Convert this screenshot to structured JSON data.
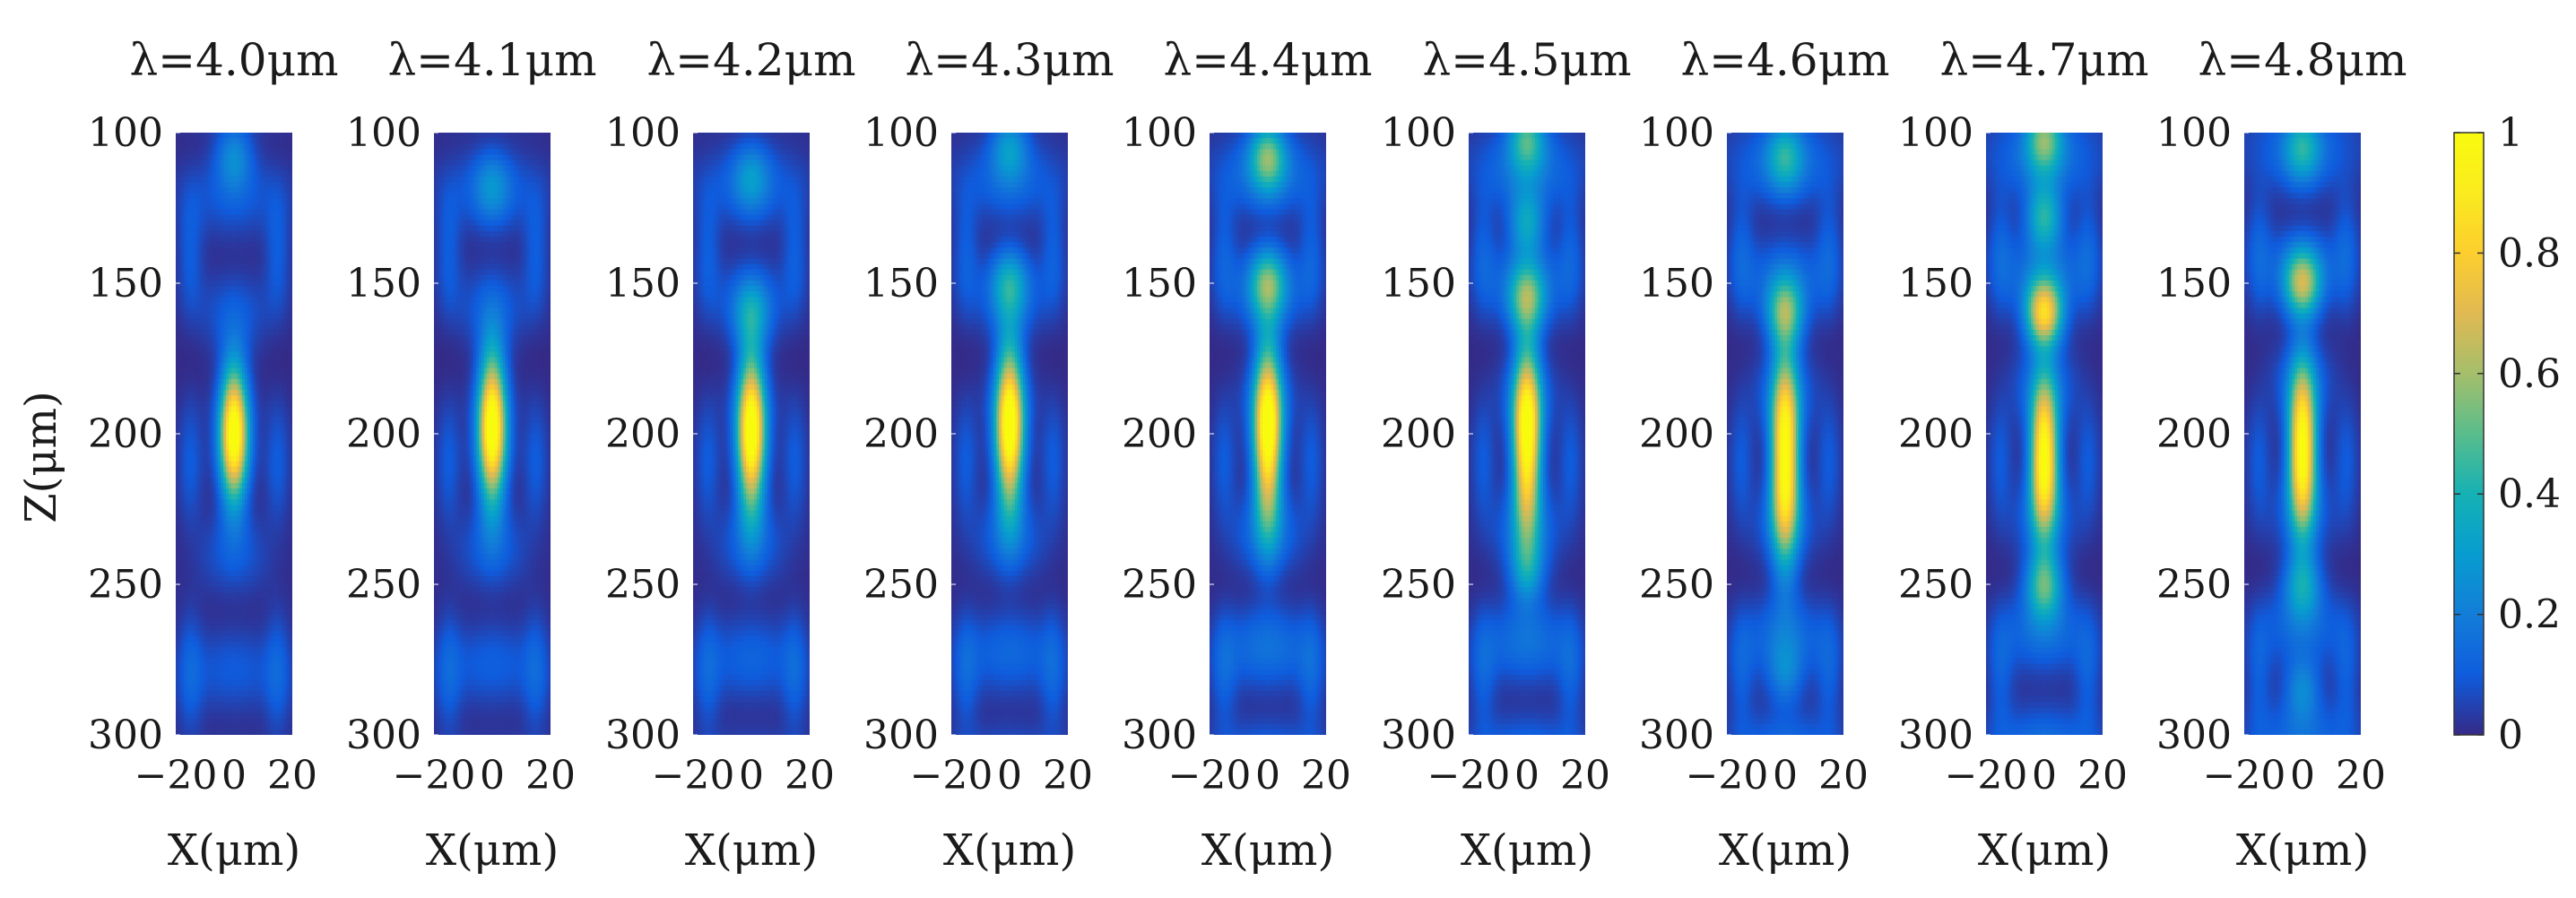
{
  "chart_data": {
    "type": "heatmap",
    "colormap": "parula",
    "panels": [
      {
        "title": "λ=4.0μm",
        "wavelength_um": 4.0,
        "peak_z": 200,
        "peak_sigma_z": 22,
        "halo_strength": 0.18,
        "side_lobes": [
          {
            "z": 108,
            "amp": 0.22
          }
        ]
      },
      {
        "title": "λ=4.1μm",
        "wavelength_um": 4.1,
        "peak_z": 198,
        "peak_sigma_z": 25,
        "halo_strength": 0.2,
        "side_lobes": [
          {
            "z": 118,
            "amp": 0.18
          }
        ]
      },
      {
        "title": "λ=4.2μm",
        "wavelength_um": 4.2,
        "peak_z": 200,
        "peak_sigma_z": 26,
        "halo_strength": 0.22,
        "side_lobes": [
          {
            "z": 115,
            "amp": 0.2
          },
          {
            "z": 160,
            "amp": 0.22
          }
        ]
      },
      {
        "title": "λ=4.3μm",
        "wavelength_um": 4.3,
        "peak_z": 198,
        "peak_sigma_z": 27,
        "halo_strength": 0.24,
        "side_lobes": [
          {
            "z": 105,
            "amp": 0.25
          },
          {
            "z": 150,
            "amp": 0.28
          }
        ]
      },
      {
        "title": "λ=4.4μm",
        "wavelength_um": 4.4,
        "peak_z": 200,
        "peak_sigma_z": 29,
        "halo_strength": 0.3,
        "side_lobes": [
          {
            "z": 108,
            "amp": 0.45
          },
          {
            "z": 150,
            "amp": 0.4
          }
        ]
      },
      {
        "title": "λ=4.5μm",
        "wavelength_um": 4.5,
        "peak_z": 202,
        "peak_sigma_z": 30,
        "halo_strength": 0.3,
        "side_lobes": [
          {
            "z": 102,
            "amp": 0.4
          },
          {
            "z": 130,
            "amp": 0.32
          },
          {
            "z": 155,
            "amp": 0.4
          },
          {
            "z": 245,
            "amp": 0.25
          }
        ]
      },
      {
        "title": "λ=4.6μm",
        "wavelength_um": 4.6,
        "peak_z": 208,
        "peak_sigma_z": 32,
        "halo_strength": 0.28,
        "side_lobes": [
          {
            "z": 108,
            "amp": 0.3
          },
          {
            "z": 160,
            "amp": 0.45
          },
          {
            "z": 280,
            "amp": 0.18
          }
        ]
      },
      {
        "title": "λ=4.7μm",
        "wavelength_um": 4.7,
        "peak_z": 208,
        "peak_sigma_z": 24,
        "halo_strength": 0.3,
        "side_lobes": [
          {
            "z": 102,
            "amp": 0.45
          },
          {
            "z": 128,
            "amp": 0.4
          },
          {
            "z": 160,
            "amp": 0.78
          },
          {
            "z": 250,
            "amp": 0.45
          }
        ]
      },
      {
        "title": "λ=4.8μm",
        "wavelength_um": 4.8,
        "peak_z": 205,
        "peak_sigma_z": 26,
        "halo_strength": 0.26,
        "side_lobes": [
          {
            "z": 105,
            "amp": 0.3
          },
          {
            "z": 150,
            "amp": 0.55
          },
          {
            "z": 250,
            "amp": 0.3
          },
          {
            "z": 285,
            "amp": 0.22
          }
        ]
      }
    ],
    "x_range": [
      -20,
      20
    ],
    "z_range": [
      100,
      300
    ],
    "x_ticks": [
      -20,
      0,
      20
    ],
    "x_tick_labels": [
      "−20",
      "0",
      "20"
    ],
    "z_ticks": [
      100,
      150,
      200,
      250,
      300
    ],
    "z_tick_labels": [
      "100",
      "150",
      "200",
      "250",
      "300"
    ],
    "xlabel": "X(μm)",
    "ylabel": "Z(μm)",
    "colorbar": {
      "range": [
        0,
        1
      ],
      "ticks": [
        0,
        0.2,
        0.4,
        0.6,
        0.8,
        1
      ],
      "tick_labels": [
        "0",
        "0.2",
        "0.4",
        "0.6",
        "0.8",
        "1"
      ]
    }
  }
}
